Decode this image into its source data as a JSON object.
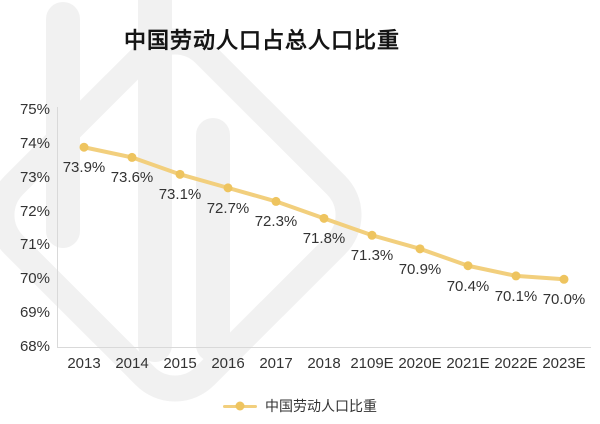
{
  "title": "中国劳动人口占总人口比重",
  "chart_data": {
    "type": "line",
    "title": "中国劳动人口占总人口比重",
    "categories": [
      "2013",
      "2014",
      "2015",
      "2016",
      "2017",
      "2018",
      "2109E",
      "2020E",
      "2021E",
      "2022E",
      "2023E"
    ],
    "series": [
      {
        "name": "中国劳动人口比重",
        "values": [
          73.9,
          73.6,
          73.1,
          72.7,
          72.3,
          71.8,
          71.3,
          70.9,
          70.4,
          70.1,
          70.0
        ]
      }
    ],
    "data_labels": [
      "73.9%",
      "73.6%",
      "73.1%",
      "72.7%",
      "72.3%",
      "71.8%",
      "71.3%",
      "70.9%",
      "70.4%",
      "70.1%",
      "70.0%"
    ],
    "y_ticks": [
      "75%",
      "74%",
      "73%",
      "72%",
      "71%",
      "70%",
      "69%",
      "68%"
    ],
    "ylim": [
      68,
      75
    ],
    "grid": false,
    "legend": {
      "label": "中国劳动人口比重",
      "position": "bottom"
    },
    "colors": {
      "line": "#F2CF7D",
      "marker": "#EEC45F",
      "axis": "#D9D9D9",
      "text": "#333333",
      "watermark": "#F1F1F1"
    }
  }
}
